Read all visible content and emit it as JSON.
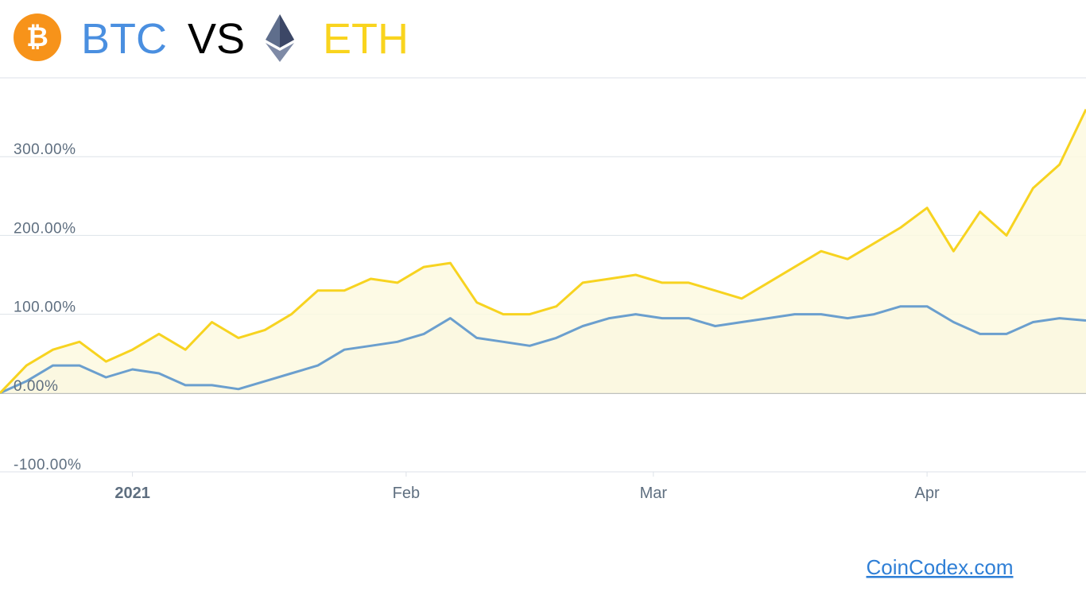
{
  "header": {
    "left": "BTC",
    "vs": "VS",
    "right": "ETH"
  },
  "source": "CoinCodex.com",
  "chart_data": {
    "type": "line",
    "x": [
      "2020-12-17",
      "2020-12-20",
      "2020-12-23",
      "2020-12-26",
      "2020-12-29",
      "2021-01-01",
      "2021-01-04",
      "2021-01-07",
      "2021-01-10",
      "2021-01-13",
      "2021-01-16",
      "2021-01-19",
      "2021-01-22",
      "2021-01-25",
      "2021-01-28",
      "2021-01-31",
      "2021-02-03",
      "2021-02-06",
      "2021-02-09",
      "2021-02-12",
      "2021-02-15",
      "2021-02-18",
      "2021-02-21",
      "2021-02-24",
      "2021-02-27",
      "2021-03-02",
      "2021-03-05",
      "2021-03-08",
      "2021-03-11",
      "2021-03-14",
      "2021-03-17",
      "2021-03-20",
      "2021-03-23",
      "2021-03-26",
      "2021-03-29",
      "2021-04-01",
      "2021-04-04",
      "2021-04-07",
      "2021-04-10",
      "2021-04-13",
      "2021-04-16",
      "2021-04-19"
    ],
    "series": [
      {
        "name": "BTC",
        "color": "#6b9fce",
        "fill": "#edf0e3",
        "values": [
          0,
          15,
          35,
          35,
          20,
          30,
          25,
          10,
          10,
          5,
          15,
          25,
          35,
          55,
          60,
          65,
          75,
          95,
          70,
          65,
          60,
          70,
          85,
          95,
          100,
          95,
          95,
          85,
          90,
          95,
          100,
          100,
          95,
          100,
          110,
          110,
          90,
          75,
          75,
          90,
          95,
          92
        ]
      },
      {
        "name": "ETH",
        "color": "#f7d320",
        "fill": "#fdf9e0",
        "values": [
          0,
          35,
          55,
          65,
          40,
          55,
          75,
          55,
          90,
          70,
          80,
          100,
          130,
          130,
          145,
          140,
          160,
          165,
          115,
          100,
          100,
          110,
          140,
          145,
          150,
          140,
          140,
          130,
          120,
          140,
          160,
          180,
          170,
          190,
          210,
          235,
          180,
          230,
          200,
          260,
          290,
          360
        ]
      }
    ],
    "xlim": [
      "2020-12-17",
      "2021-04-19"
    ],
    "xticks": [
      {
        "value": "2021-01-01",
        "label": "2021"
      },
      {
        "value": "2021-02-01",
        "label": "Feb"
      },
      {
        "value": "2021-03-01",
        "label": "Mar"
      },
      {
        "value": "2021-04-01",
        "label": "Apr"
      }
    ],
    "ylim": [
      -100,
      400
    ],
    "yticks": [
      {
        "value": -100,
        "label": "-100.00%"
      },
      {
        "value": 0,
        "label": "0.00%"
      },
      {
        "value": 100,
        "label": "100.00%"
      },
      {
        "value": 200,
        "label": "200.00%"
      },
      {
        "value": 300,
        "label": "300.00%"
      }
    ],
    "grid": true
  }
}
